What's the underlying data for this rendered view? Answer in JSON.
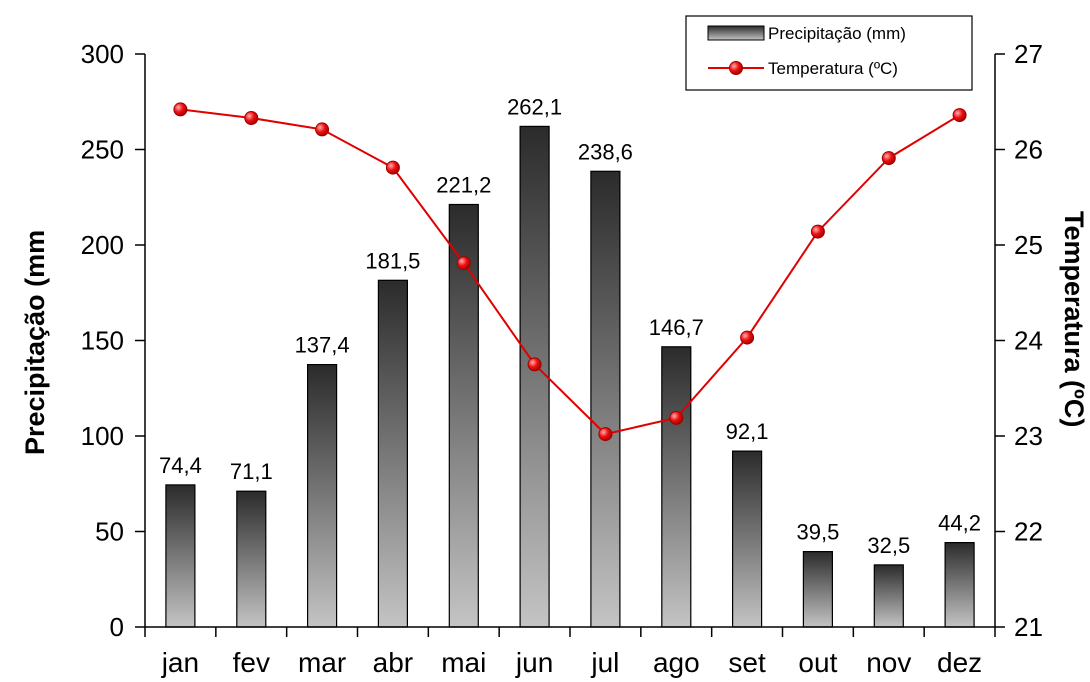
{
  "chart_data": {
    "type": "bar",
    "categories": [
      "jan",
      "fev",
      "mar",
      "abr",
      "mai",
      "jun",
      "jul",
      "ago",
      "set",
      "out",
      "nov",
      "dez"
    ],
    "series": [
      {
        "name": "Precipitação (mm)",
        "type": "bar",
        "axis": "left",
        "values": [
          74.4,
          71.1,
          137.4,
          181.5,
          221.2,
          262.1,
          238.6,
          146.7,
          92.1,
          39.5,
          32.5,
          44.2
        ],
        "labels": [
          "74,4",
          "71,1",
          "137,4",
          "181,5",
          "221,2",
          "262,1",
          "238,6",
          "146,7",
          "92,1",
          "39,5",
          "32,5",
          "44,2"
        ]
      },
      {
        "name": "Temperatura (ºC)",
        "type": "line",
        "axis": "right",
        "values": [
          26.42,
          26.33,
          26.21,
          25.81,
          24.81,
          23.75,
          23.02,
          23.19,
          24.03,
          25.14,
          25.91,
          26.36
        ]
      }
    ],
    "ylabel": "Precipitação (mm",
    "y2label": "Temperatura (ºC)",
    "ylim": [
      0,
      300
    ],
    "y2lim": [
      21,
      27
    ],
    "yticks": [
      "0",
      "50",
      "100",
      "150",
      "200",
      "250",
      "300"
    ],
    "y2ticks": [
      "21",
      "22",
      "23",
      "24",
      "25",
      "26",
      "27"
    ],
    "grid": false,
    "legend": "top-right",
    "colors": {
      "bar_top": "#2b2b2b",
      "bar_bottom": "#c4c4c4",
      "line": "#e00000",
      "marker": "#e00000"
    }
  }
}
